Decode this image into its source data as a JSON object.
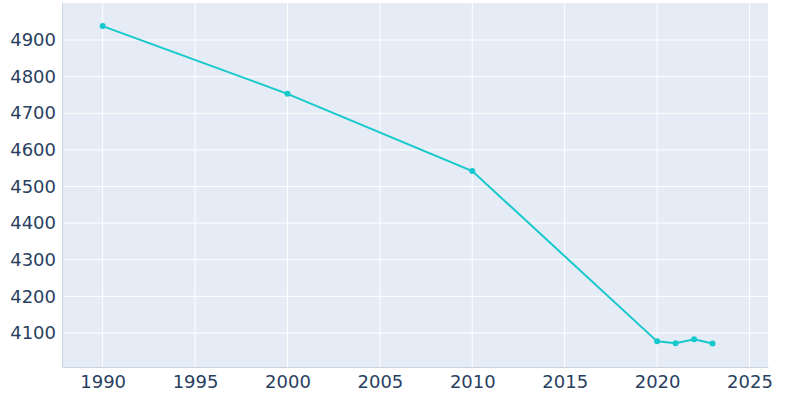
{
  "chart_data": {
    "type": "line",
    "x": [
      1990,
      2000,
      2010,
      2020,
      2021,
      2022,
      2023
    ],
    "values": [
      4938,
      4753,
      4542,
      4077,
      4072,
      4083,
      4071
    ],
    "color": "#17c9cc",
    "marker": "circle",
    "xlim": [
      1987.8,
      2026.0
    ],
    "xticks": [
      1990,
      1995,
      2000,
      2005,
      2010,
      2015,
      2020,
      2025
    ],
    "ylim": [
      4007,
      5001
    ],
    "yticks": [
      4100,
      4200,
      4300,
      4400,
      4500,
      4600,
      4700,
      4800,
      4900
    ],
    "grid": true
  }
}
